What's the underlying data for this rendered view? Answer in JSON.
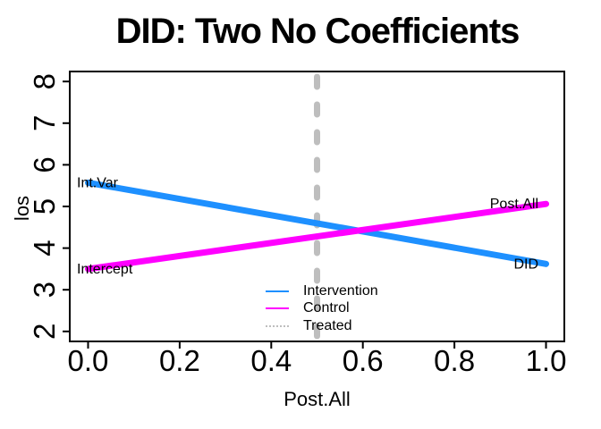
{
  "chart_data": {
    "type": "line",
    "title": "DID: Two No Coefficients",
    "xlabel": "Post.All",
    "ylabel": "los",
    "xlim": [
      0,
      1
    ],
    "ylim": [
      2,
      8
    ],
    "xticks": [
      "0.0",
      "0.2",
      "0.4",
      "0.6",
      "0.8",
      "1.0"
    ],
    "yticks": [
      "2",
      "3",
      "4",
      "5",
      "6",
      "7",
      "8"
    ],
    "grid": false,
    "box": true,
    "axis_color": "#000000",
    "series": [
      {
        "name": "Intervention",
        "color": "#1E90FF",
        "style": "solid",
        "width": 7,
        "x": [
          0,
          1
        ],
        "y": [
          5.57,
          3.62
        ]
      },
      {
        "name": "Control",
        "color": "#FF00FF",
        "style": "solid",
        "width": 7,
        "x": [
          0,
          1
        ],
        "y": [
          3.5,
          5.06
        ]
      }
    ],
    "vlines": [
      {
        "name": "Treated",
        "x": 0.5,
        "color": "#BEBEBE",
        "style": "dashed",
        "width": 7
      }
    ],
    "annotations": [
      {
        "text": "Int.Var",
        "x": 0,
        "y": 5.57,
        "anchor": "start"
      },
      {
        "text": "Intercept",
        "x": 0,
        "y": 3.5,
        "anchor": "start"
      },
      {
        "text": "Post.All",
        "x": 1,
        "y": 5.06,
        "anchor": "end"
      },
      {
        "text": "DID",
        "x": 1,
        "y": 3.62,
        "anchor": "end"
      }
    ],
    "legend": {
      "position": "bottom-center-inside",
      "box": false,
      "entries": [
        {
          "label": "Intervention",
          "color": "#1E90FF",
          "style": "solid"
        },
        {
          "label": "Control",
          "color": "#FF00FF",
          "style": "solid"
        },
        {
          "label": "Treated",
          "color": "#BEBEBE",
          "style": "dotted"
        }
      ]
    }
  }
}
